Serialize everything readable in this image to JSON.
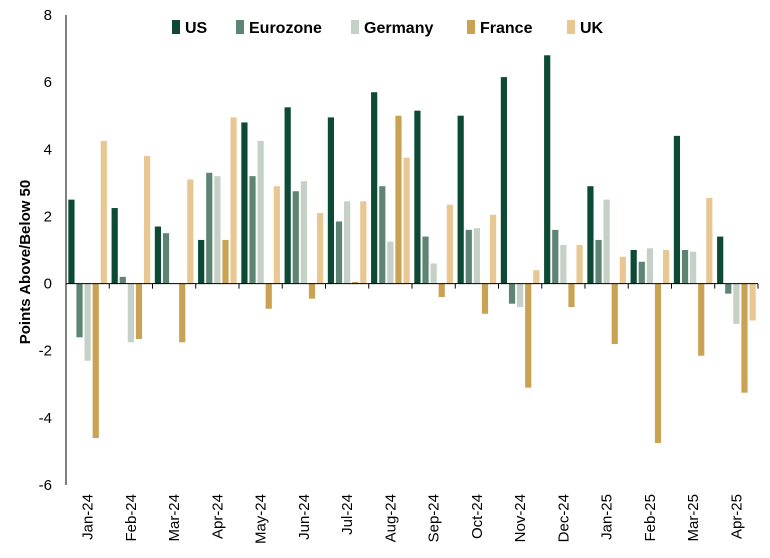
{
  "chart_data": {
    "type": "bar",
    "title": "",
    "xlabel": "",
    "ylabel": "Points Above/Below 50",
    "ylim": [
      -6,
      8
    ],
    "yticks": [
      8,
      6,
      4,
      2,
      0,
      -2,
      -4,
      -6
    ],
    "grid": false,
    "legend_position": "top",
    "categories": [
      "Jan-24",
      "Feb-24",
      "Mar-24",
      "Apr-24",
      "May-24",
      "Jun-24",
      "Jul-24",
      "Aug-24",
      "Sep-24",
      "Oct-24",
      "Nov-24",
      "Dec-24",
      "Jan-25",
      "Feb-25",
      "Mar-25",
      "Apr-25"
    ],
    "series": [
      {
        "name": "US",
        "color": "#0d4a36",
        "values": [
          2.5,
          2.25,
          1.7,
          1.3,
          4.8,
          5.25,
          4.95,
          5.7,
          5.15,
          5.0,
          6.15,
          6.8,
          2.9,
          1.0,
          4.4,
          1.4
        ]
      },
      {
        "name": "Eurozone",
        "color": "#5e8573",
        "values": [
          -1.6,
          0.2,
          1.5,
          3.3,
          3.2,
          2.75,
          1.85,
          2.9,
          1.4,
          1.6,
          -0.6,
          1.6,
          1.3,
          0.65,
          1.0,
          -0.3
        ]
      },
      {
        "name": "Germany",
        "color": "#c5d0c7",
        "values": [
          -2.3,
          -1.75,
          0.0,
          3.2,
          4.25,
          3.05,
          2.45,
          1.25,
          0.6,
          1.65,
          -0.7,
          1.15,
          2.5,
          1.05,
          0.95,
          -1.2
        ]
      },
      {
        "name": "France",
        "color": "#c9a253",
        "values": [
          -4.6,
          -1.65,
          -1.75,
          1.3,
          -0.75,
          -0.45,
          0.05,
          5.0,
          -0.4,
          -0.9,
          -3.1,
          -0.7,
          -1.8,
          -4.75,
          -2.15,
          -3.25
        ]
      },
      {
        "name": "UK",
        "color": "#e8c792",
        "values": [
          4.25,
          3.8,
          3.1,
          4.95,
          2.9,
          2.1,
          2.45,
          3.75,
          2.35,
          2.05,
          0.4,
          1.15,
          0.8,
          1.0,
          2.55,
          -1.1
        ]
      }
    ]
  }
}
